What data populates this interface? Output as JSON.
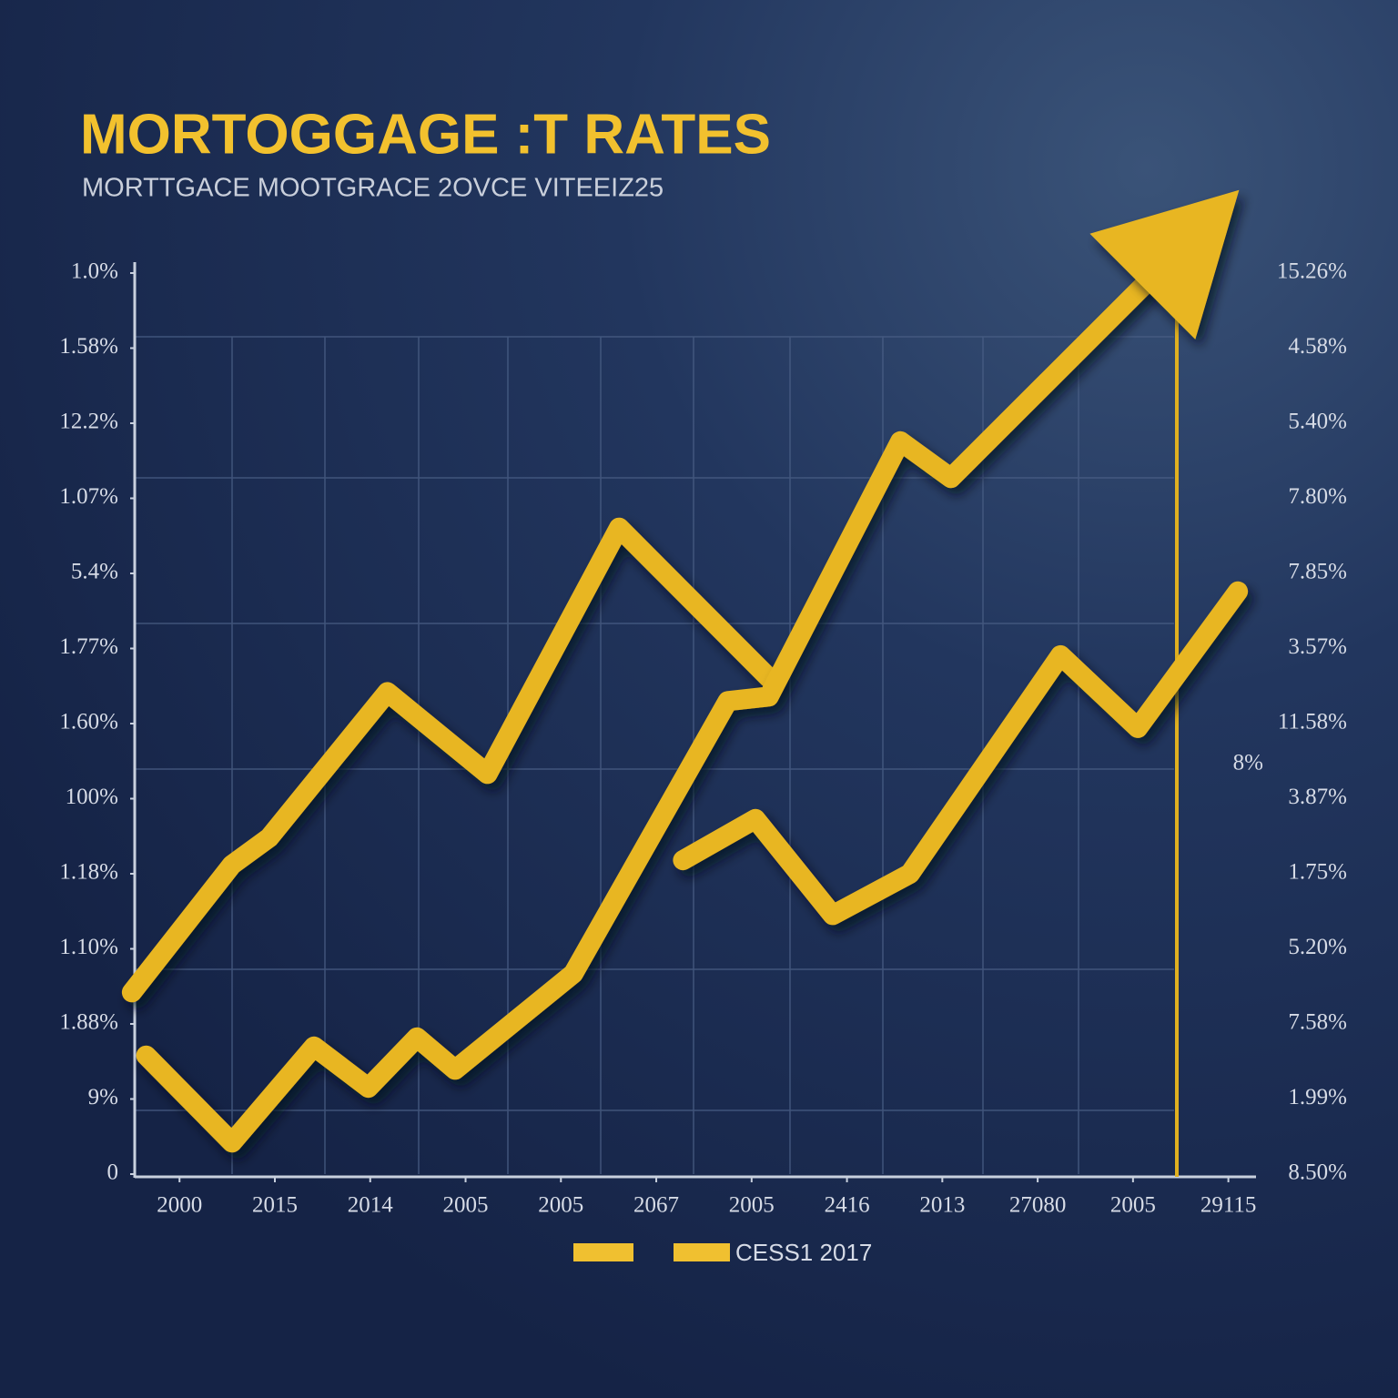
{
  "chart_data": {
    "type": "line",
    "title": "MORTOGGAGE :T RATES",
    "subtitle": "MORTTGACE MOOTGRACE 2OVCE VITEEIZ25",
    "xlim": [
      -0.47,
      11.29
    ],
    "xticks": [
      {
        "value": 0,
        "label": "2000"
      },
      {
        "value": 1,
        "label": "2015"
      },
      {
        "value": 2,
        "label": "2014"
      },
      {
        "value": 3,
        "label": "2005"
      },
      {
        "value": 4,
        "label": "2005"
      },
      {
        "value": 5,
        "label": "2067"
      },
      {
        "value": 6,
        "label": "2005"
      },
      {
        "value": 7,
        "label": "2416"
      },
      {
        "value": 8,
        "label": "2013"
      },
      {
        "value": 9,
        "label": "27080"
      },
      {
        "value": 10,
        "label": "2005"
      },
      {
        "value": 11,
        "label": "29115"
      }
    ],
    "ylim": [
      0,
      12
    ],
    "yticks": [
      0,
      {
        "value": 1,
        "label": "9%"
      },
      {
        "value": 2,
        "label": "1.88%"
      },
      {
        "value": 3,
        "label": "1.10%"
      },
      {
        "value": 4,
        "label": "1.18%"
      },
      {
        "value": 5,
        "label": "100%"
      },
      {
        "value": 6,
        "label": "1.60%"
      },
      {
        "value": 7,
        "label": "1.77%"
      },
      {
        "value": 8,
        "label": "5.4%"
      },
      {
        "value": 9,
        "label": "1.07%"
      },
      {
        "value": 10,
        "label": "12.2%"
      },
      {
        "value": 11,
        "label": "1.58%"
      },
      {
        "value": 12,
        "label": "1.0%"
      }
    ],
    "y2lim": [
      0,
      12
    ],
    "y2ticks": [
      {
        "value": 0,
        "label": "8.50%"
      },
      {
        "value": 1,
        "label": "1.99%"
      },
      {
        "value": 2,
        "label": "7.58%"
      },
      {
        "value": 3,
        "label": "5.20%"
      },
      {
        "value": 4,
        "label": "1.75%"
      },
      {
        "value": 5,
        "label": "3.87%"
      },
      {
        "value": 6,
        "label": "11.58%"
      },
      {
        "value": 7,
        "label": "3.57%"
      },
      {
        "value": 8,
        "label": "7.85%"
      },
      {
        "value": 9,
        "label": "7.80%"
      },
      {
        "value": 10,
        "label": "5.40%"
      },
      {
        "value": 11,
        "label": "4.58%"
      },
      {
        "value": 12,
        "label": "15.26%"
      }
    ],
    "annotation": "8%",
    "series": [
      {
        "color": "#e8b624",
        "x": [
          -0.5,
          0.55,
          0.94,
          2.18,
          3.23,
          4.61,
          6.18
        ],
        "values": [
          2.42,
          4.12,
          4.48,
          6.42,
          5.33,
          8.61,
          6.61
        ]
      },
      {
        "color": "#e8b624",
        "arrow": true,
        "x": [
          -0.35,
          0.55,
          1.41,
          1.98,
          2.49,
          2.89,
          4.13,
          5.75,
          6.18,
          7.56,
          8.09,
          10.1
        ],
        "values": [
          1.58,
          0.42,
          1.7,
          1.15,
          1.82,
          1.39,
          2.67,
          6.3,
          6.36,
          9.76,
          9.27,
          11.82
        ]
      },
      {
        "color": "#e8b624",
        "x": [
          5.28,
          6.04,
          6.85,
          7.66,
          9.24,
          10.05,
          11.1
        ],
        "values": [
          4.18,
          4.73,
          3.45,
          4.0,
          6.91,
          5.94,
          7.76
        ]
      }
    ],
    "legend": {
      "label": "CESS1 2017",
      "color": "#f0c030"
    }
  }
}
